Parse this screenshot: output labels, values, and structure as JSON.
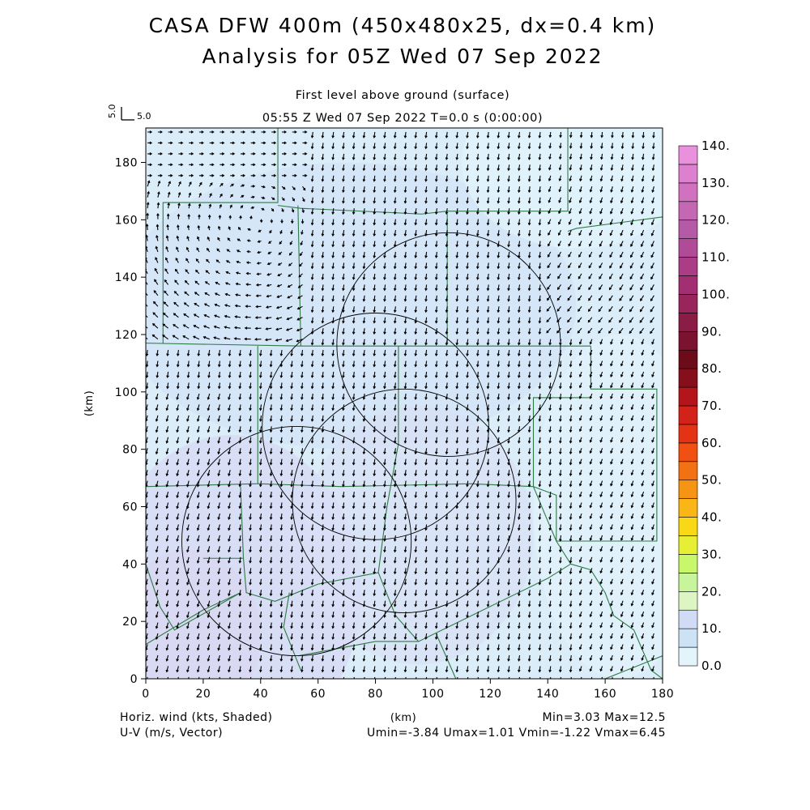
{
  "chart_data": {
    "type": "vector-field",
    "title": "CASA DFW 400m (450x480x25, dx=0.4 km)",
    "subtitle": "Analysis for 05Z Wed 07 Sep 2022",
    "level_label": "First level above ground (surface)",
    "time_label": "05:55 Z Wed 07 Sep 2022    T=0.0 s (0:00:00)",
    "reference_vector": {
      "value": 5.0,
      "label_x": "5.0",
      "label_y": "5.0"
    },
    "xlabel": "(km)",
    "ylabel": "(km)",
    "xlim": [
      0,
      180
    ],
    "ylim": [
      0,
      192
    ],
    "x_ticks": [
      0,
      20,
      40,
      60,
      80,
      100,
      120,
      140,
      160,
      180
    ],
    "y_ticks": [
      0,
      20,
      40,
      60,
      80,
      100,
      120,
      140,
      160,
      180
    ],
    "footer_left_1": "Horiz. wind (kts, Shaded)",
    "footer_left_2": "U-V (m/s, Vector)",
    "footer_right_1": "Min=3.03 Max=12.5",
    "footer_right_2": "Umin=-3.84 Umax=1.01 Vmin=-1.22 Vmax=6.45",
    "colorbar": {
      "levels": [
        0,
        5,
        10,
        15,
        20,
        25,
        30,
        35,
        40,
        45,
        50,
        55,
        60,
        65,
        70,
        75,
        80,
        85,
        90,
        95,
        100,
        105,
        110,
        115,
        120,
        125,
        130,
        135,
        140
      ],
      "labels": [
        "0.0",
        "10.",
        "20.",
        "30.",
        "40.",
        "50.",
        "60.",
        "70.",
        "80.",
        "90.",
        "100.",
        "110.",
        "120.",
        "130.",
        "140."
      ],
      "colors": [
        "#e3f4fb",
        "#cce3f6",
        "#d2dbf5",
        "#dcf5c3",
        "#c6f59c",
        "#c9f76c",
        "#e6ef33",
        "#f9d915",
        "#f9b616",
        "#f69514",
        "#f27113",
        "#f05011",
        "#e43314",
        "#d2221a",
        "#b3151a",
        "#85101c",
        "#6c0b1a",
        "#7b1330",
        "#8b1c45",
        "#98255c",
        "#a22f71",
        "#aa3d86",
        "#b04c97",
        "#b55aa6",
        "#c568b4",
        "#d172c1",
        "#dc80cf",
        "#ea91de",
        "#f6a5ee"
      ]
    },
    "field_extrema": {
      "min": 3.03,
      "max": 12.5
    },
    "radar_circles": [
      {
        "cx": 105.5,
        "cy": 116.5,
        "r": 39.0
      },
      {
        "cx": 80.0,
        "cy": 88.0,
        "r": 39.5
      },
      {
        "cx": 90.0,
        "cy": 62.0,
        "r": 39.0
      },
      {
        "cx": 52.5,
        "cy": 48.0,
        "r": 40.0
      }
    ]
  }
}
